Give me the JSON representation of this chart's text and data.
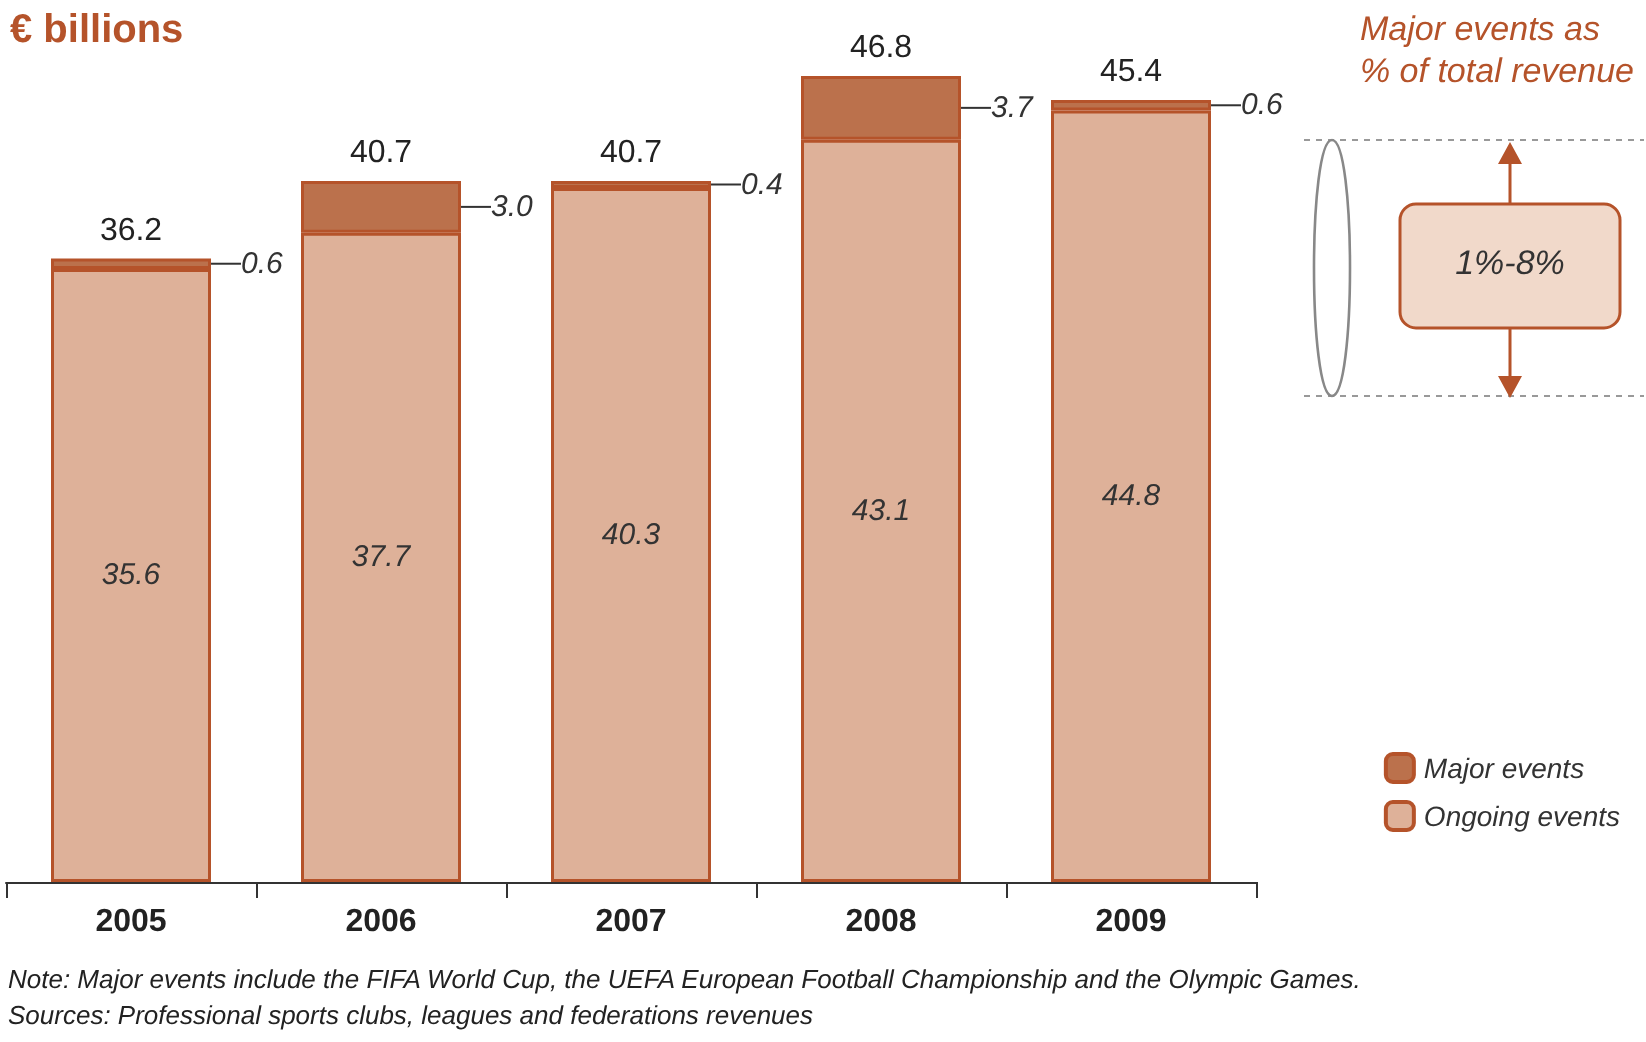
{
  "chart_data": {
    "type": "bar",
    "title": "€ billions",
    "stacked": true,
    "legend": "bottom right",
    "categories": [
      "2005",
      "2006",
      "2007",
      "2008",
      "2009"
    ],
    "series": [
      {
        "name": "Ongoing events",
        "color": "#deb199",
        "values": [
          35.6,
          37.7,
          40.3,
          43.1,
          44.8
        ],
        "value_labels": [
          "35.6",
          "37.7",
          "40.3",
          "43.1",
          "44.8"
        ]
      },
      {
        "name": "Major events",
        "color": "#bb714c",
        "values": [
          0.6,
          3.0,
          0.4,
          3.7,
          0.6
        ],
        "value_labels": [
          "0.6",
          "3.0",
          "0.4",
          "3.7",
          "0.6"
        ]
      }
    ],
    "totals": [
      "36.2",
      "40.7",
      "40.7",
      "46.8",
      "45.4"
    ],
    "annotations": [
      "Major events as\n% of total revenue",
      "1%-8%",
      "Note: Major events include the FIFA World Cup, the UEFA European Football Championship and the Olympic Games.",
      "Sources: Professional sports clubs, leagues and federations revenues"
    ]
  }
}
